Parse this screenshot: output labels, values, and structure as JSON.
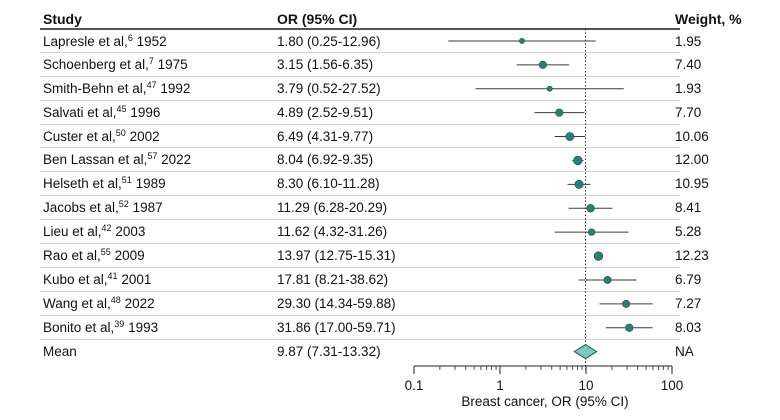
{
  "headers": {
    "study": "Study",
    "or": "OR (95% CI)",
    "weight": "Weight, %"
  },
  "rows": [
    {
      "study": "Lapresle et al,",
      "ref": "6",
      "year": "1952",
      "or_text": "1.80 (0.25-12.96)",
      "weight": "1.95"
    },
    {
      "study": "Schoenberg et al,",
      "ref": "7",
      "year": "1975",
      "or_text": "3.15 (1.56-6.35)",
      "weight": "7.40"
    },
    {
      "study": "Smith-Behn et al,",
      "ref": "47",
      "year": "1992",
      "or_text": "3.79 (0.52-27.52)",
      "weight": "1.93"
    },
    {
      "study": "Salvati et al,",
      "ref": "45",
      "year": "1996",
      "or_text": "4.89 (2.52-9.51)",
      "weight": "7.70"
    },
    {
      "study": "Custer et al,",
      "ref": "50",
      "year": "2002",
      "or_text": "6.49 (4.31-9.77)",
      "weight": "10.06"
    },
    {
      "study": "Ben Lassan et al,",
      "ref": "57",
      "year": "2022",
      "or_text": "8.04 (6.92-9.35)",
      "weight": "12.00"
    },
    {
      "study": "Helseth et al,",
      "ref": "51",
      "year": "1989",
      "or_text": "8.30 (6.10-11.28)",
      "weight": "10.95"
    },
    {
      "study": "Jacobs et al,",
      "ref": "52",
      "year": "1987",
      "or_text": "11.29 (6.28-20.29)",
      "weight": "8.41"
    },
    {
      "study": "Lieu et al,",
      "ref": "42",
      "year": "2003",
      "or_text": "11.62 (4.32-31.26)",
      "weight": "5.28"
    },
    {
      "study": "Rao et al,",
      "ref": "55",
      "year": "2009",
      "or_text": "13.97 (12.75-15.31)",
      "weight": "12.23"
    },
    {
      "study": "Kubo et al,",
      "ref": "41",
      "year": "2001",
      "or_text": "17.81 (8.21-38.62)",
      "weight": "6.79"
    },
    {
      "study": "Wang et al,",
      "ref": "48",
      "year": "2022",
      "or_text": "29.30 (14.34-59.88)",
      "weight": "7.27"
    },
    {
      "study": "Bonito et al,",
      "ref": "39",
      "year": "1993",
      "or_text": "31.86 (17.00-59.71)",
      "weight": "8.03"
    }
  ],
  "mean_row": {
    "study": "Mean",
    "or_text": "9.87 (7.31-13.32)",
    "weight": "NA"
  },
  "colors": {
    "marker": "#2a7f76",
    "diamond_fill": "#7ec7c1",
    "diamond_stroke": "#1f5d58",
    "ci_line": "#3b3b3b",
    "ref_line": "#333333"
  },
  "chart_data": {
    "type": "forest",
    "xscale": "log",
    "xlim": [
      0.1,
      100
    ],
    "xticks": [
      0.1,
      1,
      10,
      100
    ],
    "xtick_labels": [
      "0.1",
      "1",
      "10",
      "100"
    ],
    "xlabel": "Breast cancer, OR (95% CI)",
    "reference_line": 9.87,
    "studies": [
      {
        "or": 1.8,
        "lo": 0.25,
        "hi": 12.96,
        "weight": 1.95
      },
      {
        "or": 3.15,
        "lo": 1.56,
        "hi": 6.35,
        "weight": 7.4
      },
      {
        "or": 3.79,
        "lo": 0.52,
        "hi": 27.52,
        "weight": 1.93
      },
      {
        "or": 4.89,
        "lo": 2.52,
        "hi": 9.51,
        "weight": 7.7
      },
      {
        "or": 6.49,
        "lo": 4.31,
        "hi": 9.77,
        "weight": 10.06
      },
      {
        "or": 8.04,
        "lo": 6.92,
        "hi": 9.35,
        "weight": 12.0
      },
      {
        "or": 8.3,
        "lo": 6.1,
        "hi": 11.28,
        "weight": 10.95
      },
      {
        "or": 11.29,
        "lo": 6.28,
        "hi": 20.29,
        "weight": 8.41
      },
      {
        "or": 11.62,
        "lo": 4.32,
        "hi": 31.26,
        "weight": 5.28
      },
      {
        "or": 13.97,
        "lo": 12.75,
        "hi": 15.31,
        "weight": 12.23
      },
      {
        "or": 17.81,
        "lo": 8.21,
        "hi": 38.62,
        "weight": 6.79
      },
      {
        "or": 29.3,
        "lo": 14.34,
        "hi": 59.88,
        "weight": 7.27
      },
      {
        "or": 31.86,
        "lo": 17.0,
        "hi": 59.71,
        "weight": 8.03
      }
    ],
    "pooled": {
      "or": 9.87,
      "lo": 7.31,
      "hi": 13.32
    }
  }
}
